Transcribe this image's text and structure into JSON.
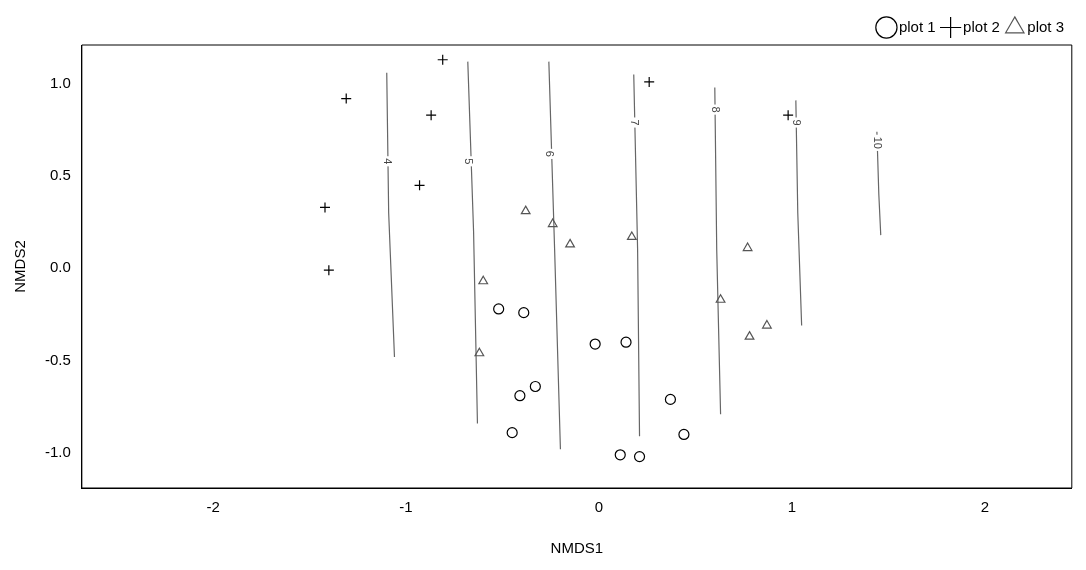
{
  "chart_data": {
    "type": "scatter",
    "xlabel": "NMDS1",
    "ylabel": "NMDS2",
    "xlim": [
      -2.68,
      2.45
    ],
    "ylim": [
      -1.19,
      1.21
    ],
    "xticks": [
      -2,
      -1,
      0,
      1,
      2
    ],
    "yticks": [
      {
        "value": -1,
        "label": "-1.0"
      },
      {
        "value": -0.5,
        "label": "-0.5"
      },
      {
        "value": 0,
        "label": "0.0"
      },
      {
        "value": 0.5,
        "label": "0.5"
      },
      {
        "value": 1,
        "label": "1.0"
      }
    ],
    "grid": false,
    "legend": "top right",
    "series": [
      {
        "name": "plot 1",
        "color": "#000000",
        "marker": "circle",
        "x": [
          -0.52,
          -0.39,
          -0.02,
          0.14,
          -0.33,
          -0.41,
          0.37,
          -0.45,
          0.44,
          0.11,
          0.21
        ],
        "values": [
          -0.22,
          -0.24,
          -0.41,
          -0.4,
          -0.64,
          -0.69,
          -0.71,
          -0.89,
          -0.9,
          -1.01,
          -1.02
        ]
      },
      {
        "name": "plot 2",
        "color": "#000000",
        "marker": "cross",
        "x": [
          -0.81,
          -1.31,
          -0.87,
          0.26,
          0.98,
          -0.93,
          -1.42,
          -1.4
        ],
        "values": [
          1.13,
          0.92,
          0.83,
          1.01,
          0.83,
          0.45,
          0.33,
          -0.01
        ]
      },
      {
        "name": "plot 3",
        "color": "#555555",
        "marker": "triangle",
        "x": [
          -0.38,
          -0.24,
          -0.15,
          0.17,
          0.77,
          -0.6,
          0.63,
          -0.62,
          0.78,
          0.87
        ],
        "values": [
          0.31,
          0.24,
          0.13,
          0.17,
          0.11,
          -0.07,
          -0.17,
          -0.46,
          -0.37,
          -0.31
        ]
      },
      {
        "type": "line",
        "color": "#666666",
        "marker": "none",
        "x": [
          -1.1,
          -1.09,
          -1.06
        ],
        "values": [
          1.06,
          0.3,
          -0.48
        ]
      },
      {
        "type": "line",
        "color": "#666666",
        "marker": "none",
        "x": [
          -0.68,
          -0.65,
          -0.63
        ],
        "values": [
          1.12,
          0.2,
          -0.84
        ]
      },
      {
        "type": "line",
        "color": "#666666",
        "marker": "none",
        "x": [
          -0.26,
          -0.23,
          -0.2
        ],
        "values": [
          1.12,
          0.1,
          -0.98
        ]
      },
      {
        "type": "line",
        "color": "#666666",
        "marker": "none",
        "x": [
          0.18,
          0.2,
          0.21
        ],
        "values": [
          1.05,
          0.1,
          -0.91
        ]
      },
      {
        "type": "line",
        "color": "#666666",
        "marker": "none",
        "x": [
          0.6,
          0.61,
          0.63
        ],
        "values": [
          0.98,
          0.1,
          -0.79
        ]
      },
      {
        "type": "line",
        "color": "#666666",
        "marker": "none",
        "x": [
          1.02,
          1.03,
          1.05
        ],
        "values": [
          0.91,
          0.3,
          -0.31
        ]
      },
      {
        "type": "line",
        "color": "#666666",
        "marker": "none",
        "x": [
          1.44,
          1.45,
          1.46
        ],
        "values": [
          0.74,
          0.4,
          0.18
        ]
      }
    ],
    "annotations": [
      {
        "text": "4",
        "x": -1.1,
        "y": 0.58
      },
      {
        "text": "5",
        "x": -0.68,
        "y": 0.58
      },
      {
        "text": "6",
        "x": -0.26,
        "y": 0.62
      },
      {
        "text": "7",
        "x": 0.18,
        "y": 0.79
      },
      {
        "text": "8",
        "x": 0.6,
        "y": 0.86
      },
      {
        "text": "9",
        "x": 1.02,
        "y": 0.79
      },
      {
        "text": "10",
        "x": 1.44,
        "y": 0.68
      }
    ]
  }
}
